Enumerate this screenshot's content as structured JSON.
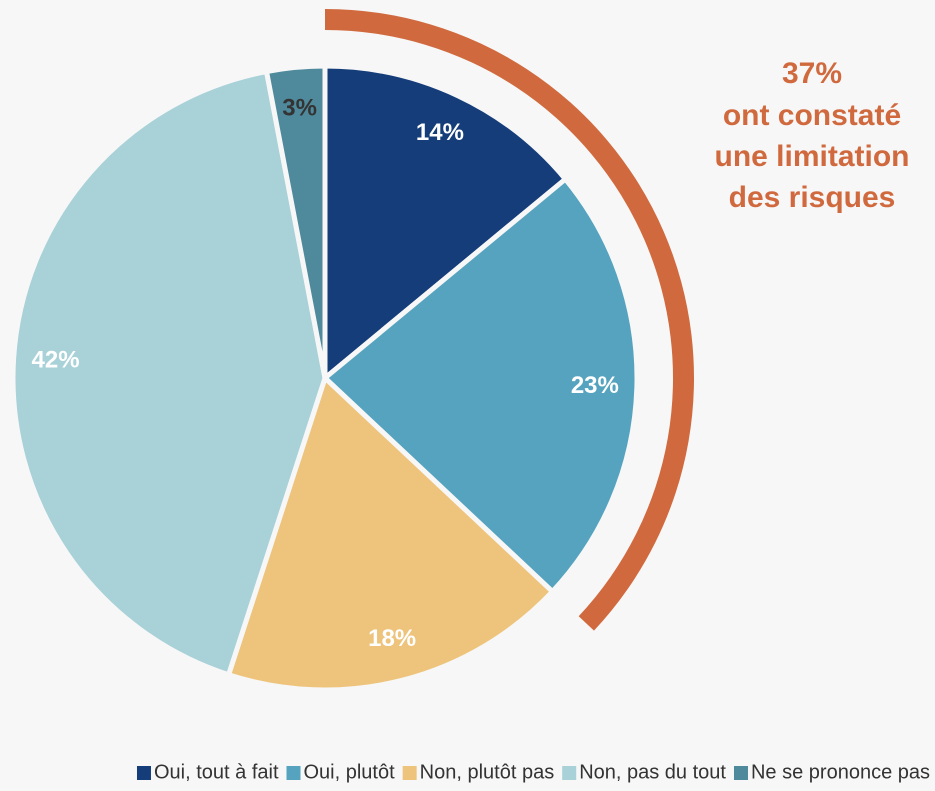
{
  "chart_data": {
    "type": "pie",
    "categories": [
      "Oui, tout à fait",
      "Oui, plutôt",
      "Non, plutôt pas",
      "Non, pas du tout",
      "Ne se prononce pas"
    ],
    "values": [
      14,
      23,
      18,
      42,
      3
    ],
    "value_labels": [
      "14%",
      "23%",
      "18%",
      "42%",
      "3%"
    ],
    "colors": [
      "#143d7a",
      "#56a3bf",
      "#eec47c",
      "#a8d1d8",
      "#4f8a9c"
    ],
    "label_colors": [
      "#ffffff",
      "#ffffff",
      "#ffffff",
      "#ffffff",
      "#333333"
    ],
    "annotation": {
      "value": 37,
      "label": "37%",
      "text": [
        "ont constaté",
        "une limitation",
        "des risques"
      ],
      "color": "#d06a3e"
    },
    "legend": "bottom"
  }
}
